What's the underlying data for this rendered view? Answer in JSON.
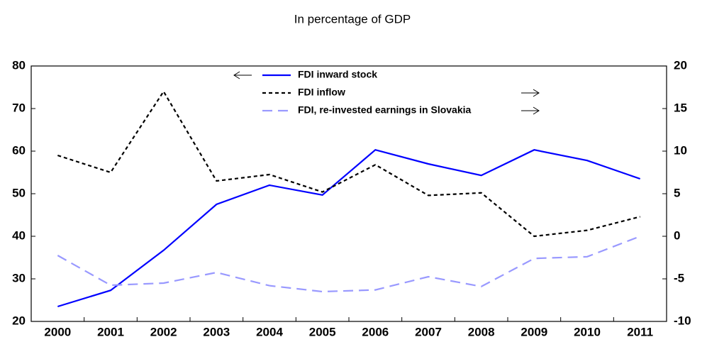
{
  "chart_data": {
    "type": "line",
    "title": "In percentage of GDP",
    "categories": [
      "2000",
      "2001",
      "2002",
      "2003",
      "2004",
      "2005",
      "2006",
      "2007",
      "2008",
      "2009",
      "2010",
      "2011"
    ],
    "series": [
      {
        "name": "FDI inward stock",
        "color": "#0000ff",
        "linestyle": "solid",
        "axis": "y",
        "values": [
          23.5,
          27.3,
          36.7,
          47.5,
          52,
          49.7,
          60.3,
          57,
          54.3,
          60.3,
          57.8,
          53.5
        ]
      },
      {
        "name": "FDI inflow",
        "color": "#000000",
        "linestyle": "dotted",
        "axis": "y2",
        "values": [
          9.5,
          7.5,
          17,
          6.5,
          7.25,
          5.2,
          8.4,
          4.8,
          5.1,
          0,
          0.7,
          2.3
        ]
      },
      {
        "name": "FDI, re-invested earnings in Slovakia",
        "color": "#9999ff",
        "linestyle": "dashed",
        "axis": "y2",
        "values": [
          -2.25,
          -5.75,
          -5.5,
          -4.25,
          -5.8,
          -6.5,
          -6.3,
          -4.75,
          -5.9,
          -2.6,
          -2.4,
          0
        ]
      }
    ],
    "ylim": [
      20,
      80
    ],
    "yticks": [
      20,
      30,
      40,
      50,
      60,
      70,
      80
    ],
    "y2lim": [
      -10,
      20
    ],
    "y2ticks": [
      -10,
      -5,
      0,
      5,
      10,
      15,
      20
    ]
  }
}
